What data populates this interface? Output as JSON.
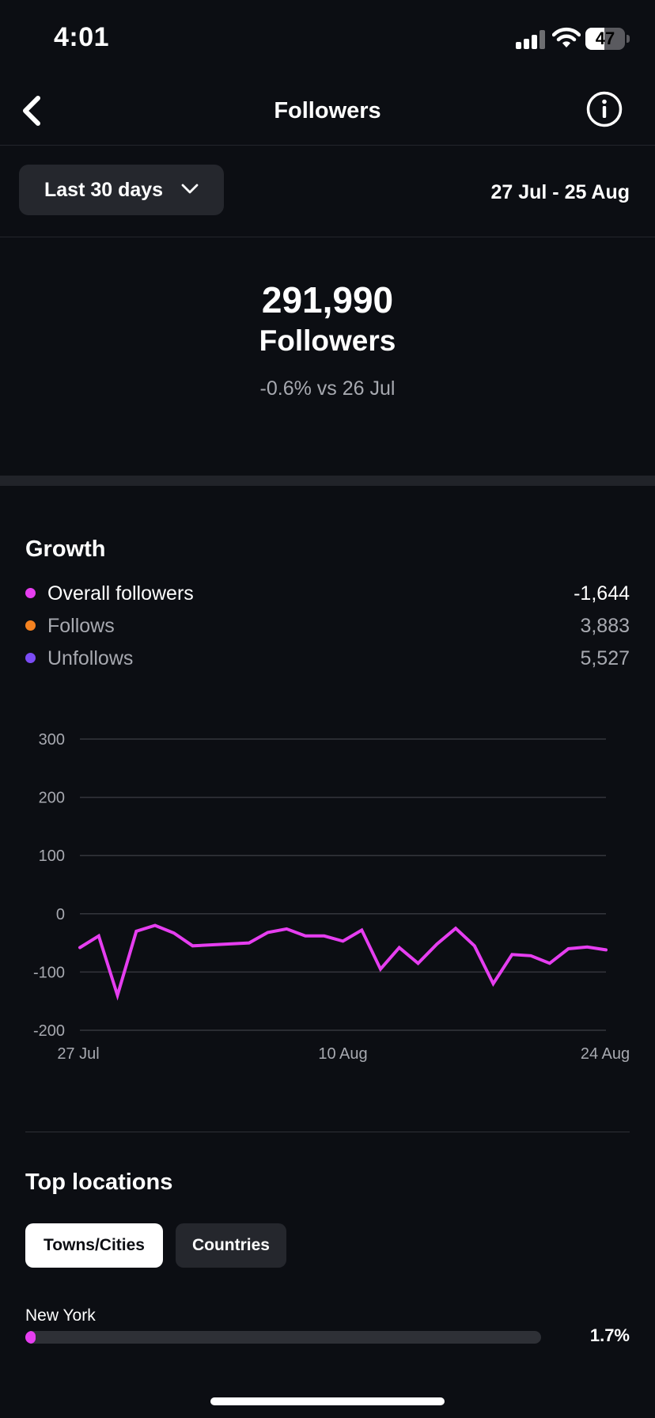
{
  "status_bar": {
    "time": "4:01",
    "battery_level": "47",
    "battery_fraction": 0.47
  },
  "header": {
    "title": "Followers"
  },
  "range": {
    "selected": "Last 30 days",
    "date_range": "27 Jul - 25 Aug"
  },
  "summary": {
    "count": "291,990",
    "label": "Followers",
    "change": "-0.6% vs 26 Jul"
  },
  "growth": {
    "title": "Growth",
    "legend": [
      {
        "name": "Overall followers",
        "value": "-1,644",
        "color": "#e63ef0"
      },
      {
        "name": "Follows",
        "value": "3,883",
        "color": "#f58220"
      },
      {
        "name": "Unfollows",
        "value": "5,527",
        "color": "#7b4cf5"
      }
    ]
  },
  "chart_data": {
    "type": "line",
    "x_ticks": [
      "27 Jul",
      "10 Aug",
      "24 Aug"
    ],
    "y_ticks": [
      300,
      200,
      100,
      0,
      -100,
      -200
    ],
    "ylim": [
      -200,
      300
    ],
    "grid": true,
    "series": [
      {
        "name": "Overall followers",
        "color": "#e63ef0",
        "points": [
          [
            0,
            -58
          ],
          [
            1,
            -38
          ],
          [
            2,
            -140
          ],
          [
            3,
            -30
          ],
          [
            4,
            -20
          ],
          [
            5,
            -33
          ],
          [
            6,
            -55
          ],
          [
            9,
            -50
          ],
          [
            10,
            -32
          ],
          [
            11,
            -26
          ],
          [
            12,
            -38
          ],
          [
            13,
            -38
          ],
          [
            14,
            -47
          ],
          [
            15,
            -28
          ],
          [
            16,
            -95
          ],
          [
            17,
            -58
          ],
          [
            18,
            -85
          ],
          [
            19,
            -52
          ],
          [
            20,
            -25
          ],
          [
            21,
            -55
          ],
          [
            22,
            -120
          ],
          [
            23,
            -70
          ],
          [
            24,
            -72
          ],
          [
            25,
            -85
          ],
          [
            26,
            -60
          ],
          [
            27,
            -57
          ],
          [
            28,
            -62
          ]
        ]
      }
    ]
  },
  "locations": {
    "title": "Top locations",
    "tabs": [
      "Towns/Cities",
      "Countries"
    ],
    "items": [
      {
        "name": "New York",
        "percent": "1.7%",
        "share": 1.7
      }
    ]
  }
}
